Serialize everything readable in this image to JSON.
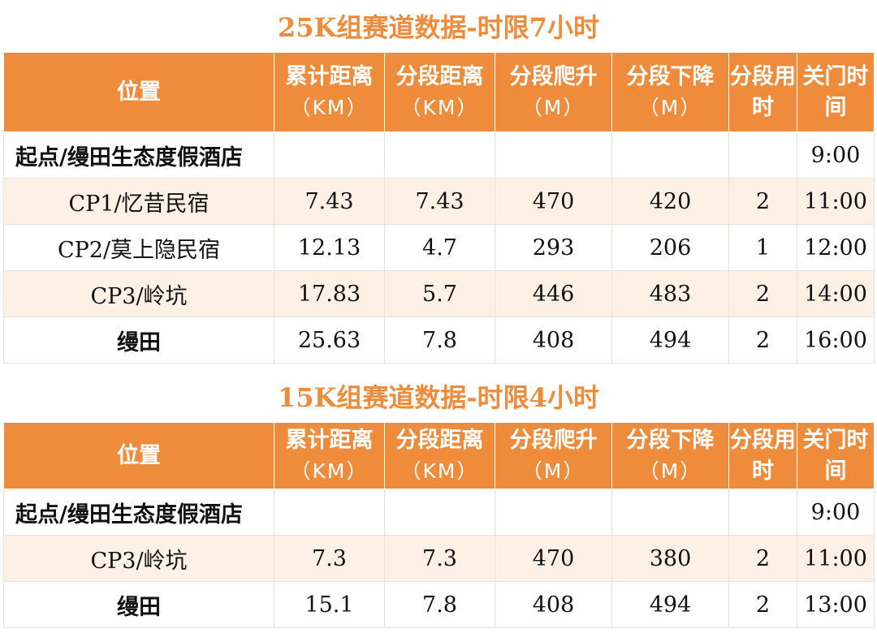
{
  "colors": {
    "accent": "#ef8c3c",
    "row_alt": "#fdf1e6",
    "header_text": "#ffffff"
  },
  "headers": {
    "location": "位置",
    "cum_dist": "累计距离",
    "seg_dist": "分段距离",
    "seg_climb": "分段爬升",
    "seg_descent": "分段下降",
    "seg_time_1": "分段",
    "seg_time_2": "用时",
    "close_1": "关门",
    "close_2": "时间",
    "unit_km": "（KM）",
    "unit_m": "（M）"
  },
  "table_25k": {
    "title": "25K组赛道数据-时限7小时",
    "rows": [
      {
        "location": "起点/缦田生态度假酒店",
        "cum": "",
        "seg": "",
        "climb": "",
        "descent": "",
        "time": "",
        "close": "9:00"
      },
      {
        "location": "CP1/忆昔民宿",
        "cum": "7.43",
        "seg": "7.43",
        "climb": "470",
        "descent": "420",
        "time": "2",
        "close": "11:00"
      },
      {
        "location": "CP2/莫上隐民宿",
        "cum": "12.13",
        "seg": "4.7",
        "climb": "293",
        "descent": "206",
        "time": "1",
        "close": "12:00"
      },
      {
        "location": "CP3/岭坑",
        "cum": "17.83",
        "seg": "5.7",
        "climb": "446",
        "descent": "483",
        "time": "2",
        "close": "14:00"
      },
      {
        "location": "缦田",
        "cum": "25.63",
        "seg": "7.8",
        "climb": "408",
        "descent": "494",
        "time": "2",
        "close": "16:00"
      }
    ]
  },
  "table_15k": {
    "title": "15K组赛道数据-时限4小时",
    "rows": [
      {
        "location": "起点/缦田生态度假酒店",
        "cum": "",
        "seg": "",
        "climb": "",
        "descent": "",
        "time": "",
        "close": "9:00"
      },
      {
        "location": "CP3/岭坑",
        "cum": "7.3",
        "seg": "7.3",
        "climb": "470",
        "descent": "380",
        "time": "2",
        "close": "11:00"
      },
      {
        "location": "缦田",
        "cum": "15.1",
        "seg": "7.8",
        "climb": "408",
        "descent": "494",
        "time": "2",
        "close": "13:00"
      }
    ]
  }
}
